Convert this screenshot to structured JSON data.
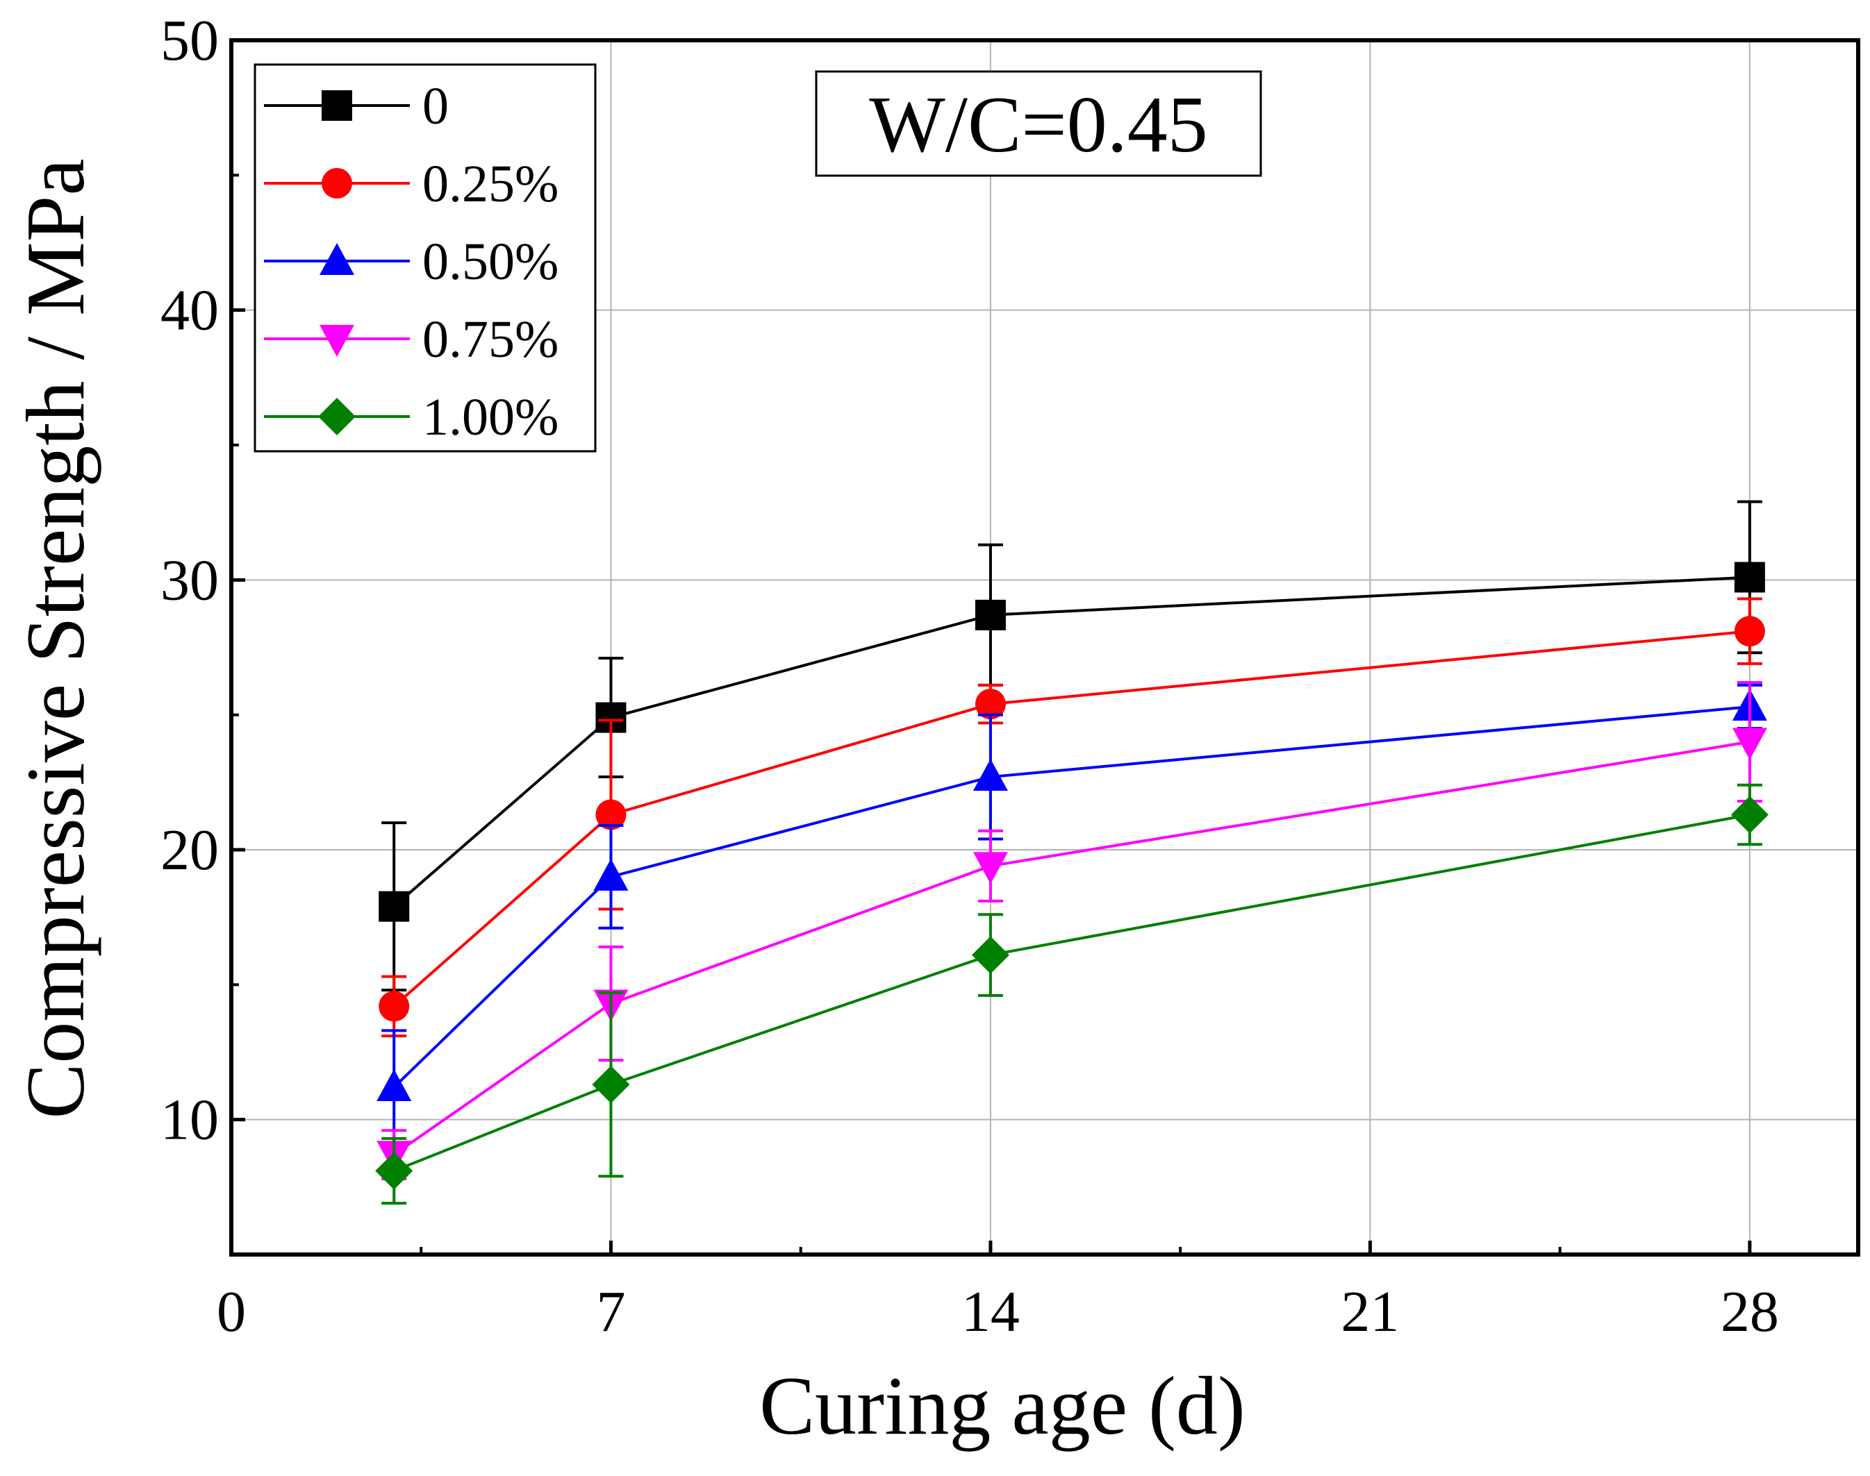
{
  "chart_data": {
    "type": "line",
    "title": "",
    "xlabel": "Curing age (d)",
    "ylabel": "Compressive Strength / MPa",
    "xlim": [
      0,
      30
    ],
    "ylim": [
      5,
      50
    ],
    "xticks": [
      0,
      7,
      14,
      21,
      28
    ],
    "xtick_labels": [
      "0",
      "7",
      "14",
      "21",
      "28"
    ],
    "xminor": [
      3.5,
      10.5,
      17.5,
      24.5
    ],
    "yticks": [
      10,
      20,
      30,
      40,
      50
    ],
    "ytick_labels": [
      "10",
      "20",
      "30",
      "40",
      "50"
    ],
    "yminor": [
      15,
      25,
      35,
      45
    ],
    "grid": true,
    "legend_position": "top-left",
    "annotation": "W/C=0.45",
    "x": [
      3,
      7,
      14,
      28
    ],
    "series": [
      {
        "name": "0",
        "color": "#000000",
        "marker": "square",
        "values": [
          17.9,
          24.9,
          28.7,
          30.1
        ],
        "errors": [
          3.1,
          2.2,
          2.6,
          2.8
        ]
      },
      {
        "name": "0.25%",
        "color": "#ff0000",
        "marker": "circle",
        "values": [
          14.2,
          21.3,
          25.4,
          28.1
        ],
        "errors": [
          1.1,
          3.5,
          0.7,
          1.2
        ]
      },
      {
        "name": "0.50%",
        "color": "#0000ff",
        "marker": "triangle-up",
        "values": [
          11.2,
          19.0,
          22.7,
          25.3
        ],
        "errors": [
          2.1,
          1.9,
          2.3,
          0.8
        ]
      },
      {
        "name": "0.75%",
        "color": "#ff00ff",
        "marker": "triangle-down",
        "values": [
          8.7,
          14.3,
          19.4,
          24.0
        ],
        "errors": [
          0.9,
          2.1,
          1.3,
          2.2
        ]
      },
      {
        "name": "1.00%",
        "color": "#008000",
        "marker": "diamond",
        "values": [
          8.1,
          11.3,
          16.1,
          21.3
        ],
        "errors": [
          1.2,
          3.4,
          1.5,
          1.1
        ]
      }
    ]
  }
}
